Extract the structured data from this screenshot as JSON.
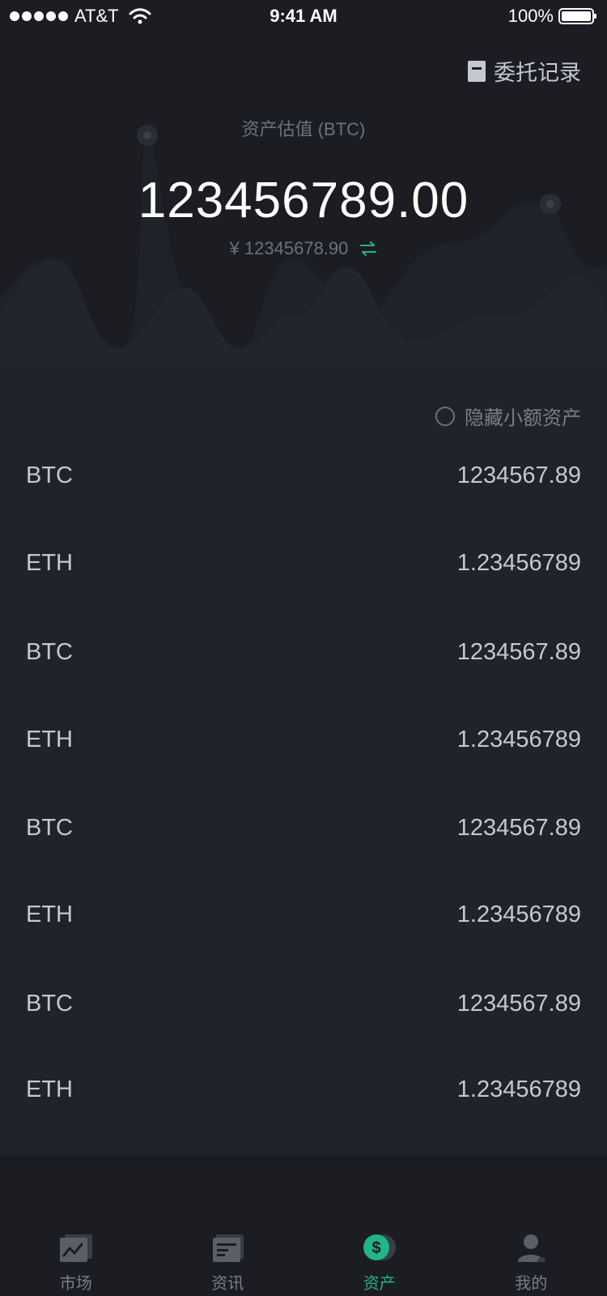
{
  "status_bar": {
    "carrier": "AT&T",
    "time": "9:41 AM",
    "battery": "100%"
  },
  "header": {
    "order_record_label": "委托记录",
    "asset_label": "资产估值 (BTC)",
    "asset_total": "123456789.00",
    "asset_cny": "¥ 12345678.90"
  },
  "list": {
    "hide_small_label": "隐藏小额资产",
    "assets": [
      {
        "name": "BTC",
        "amount": "1234567.89"
      },
      {
        "name": "ETH",
        "amount": "1.23456789"
      },
      {
        "name": "BTC",
        "amount": "1234567.89"
      },
      {
        "name": "ETH",
        "amount": "1.23456789"
      },
      {
        "name": "BTC",
        "amount": "1234567.89"
      },
      {
        "name": "ETH",
        "amount": "1.23456789"
      },
      {
        "name": "BTC",
        "amount": "1234567.89"
      },
      {
        "name": "ETH",
        "amount": "1.23456789"
      }
    ]
  },
  "tab_bar": {
    "tabs": [
      {
        "label": "市场",
        "icon": "chart-icon",
        "active": false
      },
      {
        "label": "资讯",
        "icon": "news-icon",
        "active": false
      },
      {
        "label": "资产",
        "icon": "dollar-icon",
        "active": true
      },
      {
        "label": "我的",
        "icon": "user-icon",
        "active": false
      }
    ]
  },
  "colors": {
    "accent": "#21b588",
    "background": "#1b1d22",
    "list_background": "#20232b"
  }
}
